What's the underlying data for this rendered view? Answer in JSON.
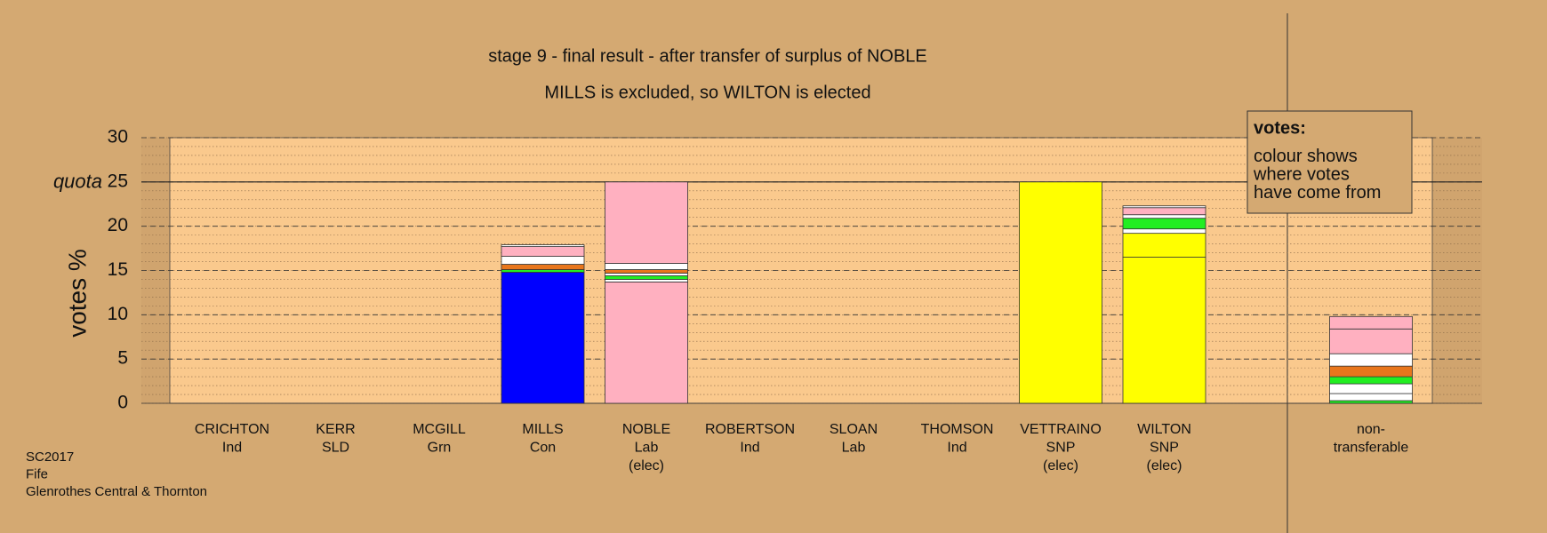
{
  "chart_data": {
    "type": "stacked-bar",
    "title": "stage 9 - final result - after transfer of surplus of NOBLE",
    "subtitle": "MILLS is excluded, so WILTON is elected",
    "y_label": "votes %",
    "ylim": [
      0,
      30
    ],
    "yticks": [
      0,
      5,
      10,
      15,
      20,
      25,
      30
    ],
    "minor_grid_step": 1,
    "quota": {
      "value": 25,
      "label": "quota"
    },
    "categories": [
      [
        "CRICHTON",
        "Ind"
      ],
      [
        "KERR",
        "SLD"
      ],
      [
        "MCGILL",
        "Grn"
      ],
      [
        "MILLS",
        "Con"
      ],
      [
        "NOBLE",
        "Lab",
        "(elec)"
      ],
      [
        "ROBERTSON",
        "Ind"
      ],
      [
        "SLOAN",
        "Lab"
      ],
      [
        "THOMSON",
        "Ind"
      ],
      [
        "VETTRAINO",
        "SNP",
        "(elec)"
      ],
      [
        "WILTON",
        "SNP",
        "(elec)"
      ],
      [
        "non-",
        "transferable"
      ]
    ],
    "segments": [
      [],
      [],
      [],
      [
        {
          "color": "#0000ff",
          "value": 14.8
        },
        {
          "color": "#22ee22",
          "value": 0.3
        },
        {
          "color": "#e8761c",
          "value": 0.6
        },
        {
          "color": "#ffffff",
          "value": 0.9
        },
        {
          "color": "#ffb0c0",
          "value": 1.1
        },
        {
          "color": "#ffffff",
          "value": 0.2
        }
      ],
      [
        {
          "color": "#ffb0c0",
          "value": 13.7
        },
        {
          "color": "#ffffff",
          "value": 0.3
        },
        {
          "color": "#22ee22",
          "value": 0.4
        },
        {
          "color": "#ffffff",
          "value": 0.3
        },
        {
          "color": "#e8761c",
          "value": 0.4
        },
        {
          "color": "#ffffff",
          "value": 0.7
        },
        {
          "color": "#ffb0c0",
          "value": 9.2
        }
      ],
      [],
      [],
      [],
      [
        {
          "color": "#ffff00",
          "value": 25
        }
      ],
      [
        {
          "color": "#ffff00",
          "value": 16.5
        },
        {
          "color": "#ffff00",
          "value": 2.7
        },
        {
          "color": "#ffffff",
          "value": 0.5
        },
        {
          "color": "#22ee22",
          "value": 1.2
        },
        {
          "color": "#ffffff",
          "value": 0.4
        },
        {
          "color": "#ffb0c0",
          "value": 0.8
        },
        {
          "color": "#ffffff",
          "value": 0.2
        }
      ],
      [
        {
          "color": "#22ee22",
          "value": 0.3
        },
        {
          "color": "#ffffff",
          "value": 0.8
        },
        {
          "color": "#ffffff",
          "value": 1.1
        },
        {
          "color": "#22ee22",
          "value": 0.8
        },
        {
          "color": "#e8761c",
          "value": 1.2
        },
        {
          "color": "#ffffff",
          "value": 1.4
        },
        {
          "color": "#ffb0c0",
          "value": 2.8
        },
        {
          "color": "#ffb0c0",
          "value": 1.4
        }
      ]
    ],
    "legend": [
      "votes:",
      "colour shows",
      "where votes",
      "have come from"
    ],
    "footer": [
      "SC2017",
      "Fife",
      "Glenrothes Central & Thornton"
    ]
  }
}
